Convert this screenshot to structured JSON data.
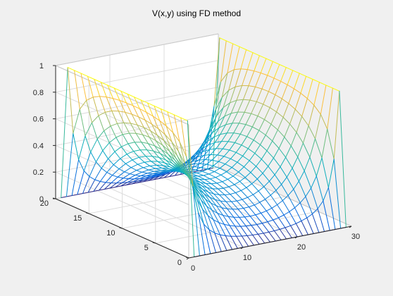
{
  "chart_data": {
    "type": "mesh",
    "title": "V(x,y) using FD method",
    "xlabel": "",
    "ylabel": "",
    "zlabel": "",
    "xlim": [
      0,
      30
    ],
    "ylim": [
      0,
      20
    ],
    "zlim": [
      0,
      1
    ],
    "x_ticks": [
      "0",
      "10",
      "20",
      "30"
    ],
    "y_ticks": [
      "0",
      "5",
      "10",
      "15",
      "20"
    ],
    "z_ticks": [
      "0",
      "0.2",
      "0.4",
      "0.6",
      "0.8",
      "1"
    ],
    "grid": true,
    "colormap": "parula",
    "surface": {
      "description": "Laplace equation finite-difference solution",
      "nx": 29,
      "ny": 21,
      "boundary": {
        "x0": 1,
        "x_max": 1,
        "y0": 0,
        "y_max": 0
      }
    }
  },
  "colors": {
    "background": "#f0f0f0",
    "axes": "#ffffff",
    "grid": "#dcdcdc",
    "text": "#262626"
  }
}
